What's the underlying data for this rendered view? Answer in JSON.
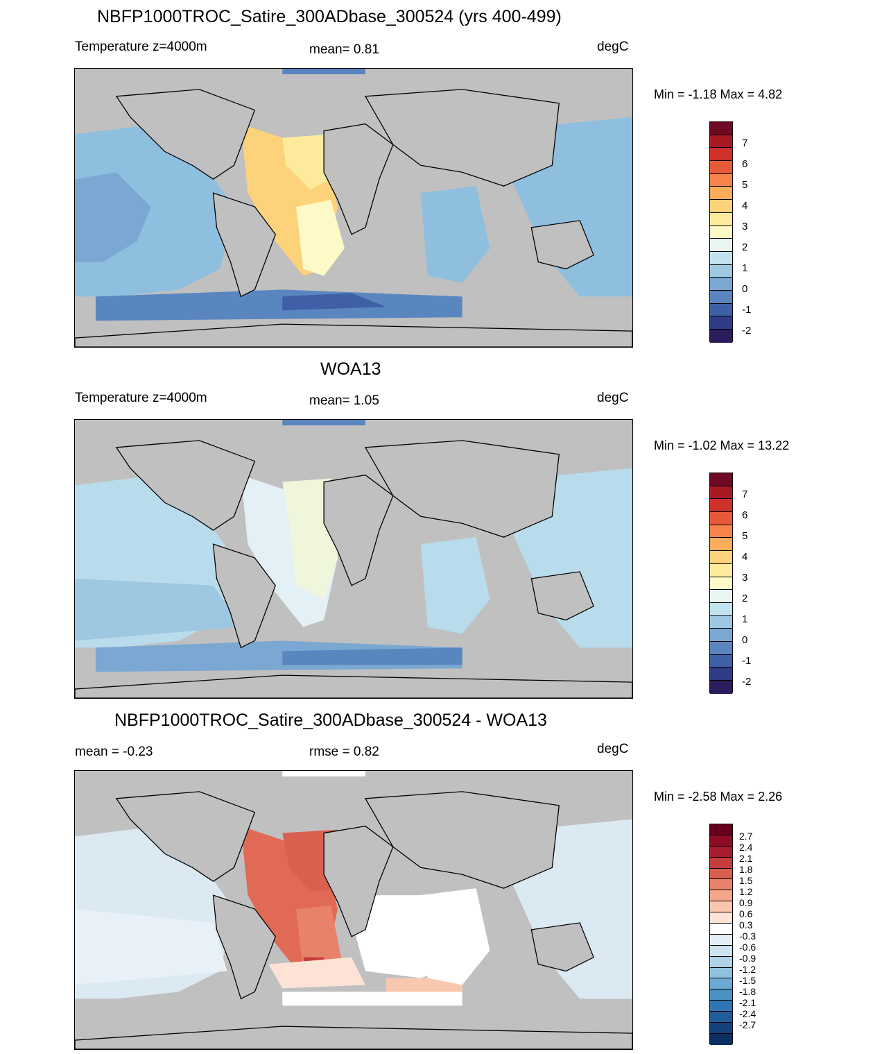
{
  "panels": [
    {
      "title": "NBFP1000TROC_Satire_300ADbase_300524 (yrs 400-499)",
      "left_label": "Temperature z=4000m",
      "center_label": "mean=   0.81",
      "units": "degC",
      "minmax": "Min =  -1.18 Max =   4.82",
      "colorbar_colors": [
        "#2b1d5c",
        "#2f3b86",
        "#3f5fa6",
        "#5a86c0",
        "#7aa8d2",
        "#9ec7e2",
        "#c3e2ef",
        "#e8f5f3",
        "#fdfac8",
        "#fdeb9b",
        "#fcd27a",
        "#fbab5c",
        "#f6844a",
        "#e65a3a",
        "#cd3128",
        "#a71a24",
        "#6e0a23"
      ],
      "colorbar_labels": [
        "7",
        "6",
        "5",
        "4",
        "3",
        "2",
        "1",
        "0",
        "-1",
        "-2"
      ]
    },
    {
      "title": "WOA13",
      "left_label": "Temperature z=4000m",
      "center_label": "mean=   1.05",
      "units": "degC",
      "minmax": "Min =  -1.02 Max =  13.22",
      "colorbar_colors": [
        "#2b1d5c",
        "#2f3b86",
        "#3f5fa6",
        "#5a86c0",
        "#7aa8d2",
        "#9ec7e2",
        "#c3e2ef",
        "#e8f5f3",
        "#fdfac8",
        "#fdeb9b",
        "#fcd27a",
        "#fbab5c",
        "#f6844a",
        "#e65a3a",
        "#cd3128",
        "#a71a24",
        "#6e0a23"
      ],
      "colorbar_labels": [
        "7",
        "6",
        "5",
        "4",
        "3",
        "2",
        "1",
        "0",
        "-1",
        "-2"
      ]
    },
    {
      "title": "NBFP1000TROC_Satire_300ADbase_300524 - WOA13",
      "left_label": "mean =  -0.23",
      "center_label": "rmse =   0.82",
      "units": "degC",
      "minmax": "Min =  -2.58 Max =   2.26",
      "colorbar_colors": [
        "#0b2f63",
        "#14417e",
        "#1f5c9c",
        "#2f77b4",
        "#4a92c4",
        "#6baad2",
        "#8fc2df",
        "#afd4e8",
        "#cde3f0",
        "#e3eef6",
        "#ffffff",
        "#fde3d6",
        "#f9c6ae",
        "#f4a68a",
        "#e9826a",
        "#d9604f",
        "#c43c3c",
        "#a81c2e",
        "#8c0d25",
        "#67001f"
      ],
      "colorbar_labels": [
        "2.7",
        "2.4",
        "2.1",
        "1.8",
        "1.5",
        "1.2",
        "0.9",
        "0.6",
        "0.3",
        "-0.3",
        "-0.6",
        "-0.9",
        "-1.2",
        "-1.5",
        "-1.8",
        "-2.1",
        "-2.4",
        "-2.7"
      ]
    }
  ],
  "colors": {
    "land": "#c0c0c0",
    "ocean_panel1": "#8ebfdf",
    "ocean_panel2": "#b9dcec",
    "ocean_panel3": "#dbe9f3"
  }
}
